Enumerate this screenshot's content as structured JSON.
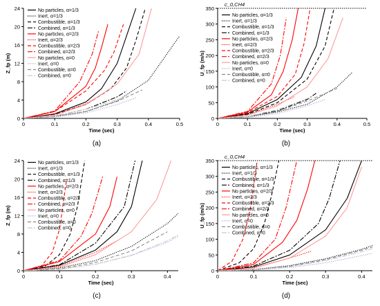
{
  "styles": {
    "np13": {
      "color": "#000000",
      "dash": ""
    },
    "in13": {
      "color": "#000000",
      "dash": "1.2,1.6"
    },
    "co13": {
      "color": "#000000",
      "dash": "5,3"
    },
    "cb13": {
      "color": "#000000",
      "dash": "7,2,2,2"
    },
    "np23": {
      "color": "#ff0000",
      "dash": ""
    },
    "in23": {
      "color": "#ff0000",
      "dash": "1.2,1.6"
    },
    "co23": {
      "color": "#ff0000",
      "dash": "5,3"
    },
    "cb23": {
      "color": "#ff0000",
      "dash": "7,2,2,2"
    },
    "np0": {
      "color": "#ff9a9a",
      "dash": ""
    },
    "in0": {
      "color": "#9fa9d6",
      "dash": "1.2,1.6"
    },
    "co0": {
      "color": "#8a8a8a",
      "dash": "5,3"
    },
    "cb0": {
      "color": "#c9c9c9",
      "dash": "7,2,2,2"
    }
  },
  "chart_data": [
    {
      "type": "line",
      "panel_label": "(a)",
      "xlabel": "Time (sec)",
      "ylabel": "Z_fp (m)",
      "xlim": [
        0,
        0.5
      ],
      "ylim": [
        0,
        24
      ],
      "xticks": [
        0,
        0.1,
        0.2,
        0.3,
        0.4,
        0.5
      ],
      "yticks": [
        0,
        4,
        8,
        12,
        16,
        20,
        24
      ],
      "grid": false,
      "legend_position": "top-left",
      "series": [
        {
          "key": "np13",
          "name": "No particles, α=1/3",
          "x": [
            0,
            0.1,
            0.2,
            0.25,
            0.3,
            0.33,
            0.36
          ],
          "y": [
            0,
            1.0,
            3.6,
            6.5,
            12.0,
            18.0,
            24.0
          ]
        },
        {
          "key": "in13",
          "name": "Inert, α=1/3",
          "x": [
            0,
            0.1,
            0.2,
            0.3,
            0.4,
            0.5
          ],
          "y": [
            0,
            0.4,
            1.5,
            3.8,
            8.3,
            18.0
          ]
        },
        {
          "key": "co13",
          "name": "Combustible, α=1/3",
          "x": [
            0,
            0.1,
            0.2,
            0.28,
            0.33,
            0.36,
            0.39
          ],
          "y": [
            0,
            0.9,
            3.0,
            6.5,
            11.0,
            17.0,
            24.0
          ]
        },
        {
          "key": "cb13",
          "name": "Combined, α=1/3",
          "x": [
            0,
            0.1,
            0.2,
            0.3,
            0.33
          ],
          "y": [
            0,
            0.5,
            2.0,
            4.7,
            6.0
          ]
        },
        {
          "key": "np23",
          "name": "No particles, α=2/3",
          "x": [
            0,
            0.1,
            0.2,
            0.23,
            0.25,
            0.27
          ],
          "y": [
            0,
            1.5,
            7.0,
            11.0,
            15.5,
            20.5
          ]
        },
        {
          "key": "in23",
          "name": "Inert, α=2/3",
          "x": [
            0,
            0.1,
            0.2,
            0.26
          ],
          "y": [
            0,
            0.9,
            3.2,
            5.6
          ]
        },
        {
          "key": "co23",
          "name": "Combustible, α=2/3",
          "x": [
            0,
            0.1,
            0.2,
            0.26,
            0.29,
            0.32
          ],
          "y": [
            0,
            1.5,
            6.0,
            10.5,
            14.5,
            20.5
          ]
        },
        {
          "key": "cb23",
          "name": "Combined, α=2/3",
          "x": [
            0,
            0.1,
            0.18,
            0.22,
            0.24
          ],
          "y": [
            0,
            1.6,
            8.0,
            14.0,
            19.0
          ]
        },
        {
          "key": "np0",
          "name": "No particles, α=0",
          "x": [
            0,
            0.1,
            0.2,
            0.3,
            0.37,
            0.41
          ],
          "y": [
            0,
            0.7,
            3.0,
            7.5,
            14.0,
            24.0
          ]
        },
        {
          "key": "in0",
          "name": "Inert, α=0",
          "x": [
            0,
            0.1,
            0.2,
            0.3,
            0.36
          ],
          "y": [
            0,
            0.3,
            1.2,
            3.0,
            4.5
          ]
        },
        {
          "key": "co0",
          "name": "Combustible, α=0",
          "x": [
            0,
            0.1,
            0.2,
            0.3,
            0.38
          ],
          "y": [
            0,
            0.4,
            1.5,
            3.7,
            6.2
          ]
        },
        {
          "key": "cb0",
          "name": "Combined, α=0",
          "x": [
            0,
            0.1,
            0.2,
            0.32
          ],
          "y": [
            0,
            0.5,
            2.0,
            4.5
          ]
        }
      ]
    },
    {
      "type": "line",
      "panel_label": "(b)",
      "xlabel": "Time (sec)",
      "ylabel": "U_fp (m/s)",
      "xlim": [
        0,
        0.5
      ],
      "ylim": [
        0,
        350
      ],
      "xticks": [
        0,
        0.1,
        0.2,
        0.3,
        0.4,
        0.5
      ],
      "yticks": [
        0,
        50,
        100,
        150,
        200,
        250,
        300,
        350
      ],
      "grid": false,
      "legend_position": "top-left",
      "reference_line": {
        "y": 350,
        "label": "c_0,CH4"
      },
      "series": [
        {
          "key": "np13",
          "name": "No particles, α=1/3",
          "x": [
            0,
            0.1,
            0.2,
            0.28,
            0.33,
            0.36
          ],
          "y": [
            0,
            15,
            60,
            130,
            230,
            350
          ]
        },
        {
          "key": "in13",
          "name": "Inert, α=1/3",
          "x": [
            0,
            0.1,
            0.2,
            0.3,
            0.4,
            0.45
          ],
          "y": [
            0,
            5,
            20,
            45,
            100,
            145
          ]
        },
        {
          "key": "co13",
          "name": "Combustible, α=1/3",
          "x": [
            0,
            0.1,
            0.2,
            0.3,
            0.36,
            0.39
          ],
          "y": [
            0,
            13,
            50,
            125,
            230,
            350
          ]
        },
        {
          "key": "cb13",
          "name": "Combined, α=1/3",
          "x": [
            0,
            0.1,
            0.2,
            0.3,
            0.33
          ],
          "y": [
            0,
            6,
            24,
            60,
            80
          ]
        },
        {
          "key": "np23",
          "name": "No particles, α=2/3",
          "x": [
            0,
            0.1,
            0.18,
            0.22,
            0.25,
            0.27
          ],
          "y": [
            0,
            20,
            75,
            150,
            250,
            350
          ]
        },
        {
          "key": "in23",
          "name": "Inert, α=2/3",
          "x": [
            0,
            0.1,
            0.2,
            0.26
          ],
          "y": [
            0,
            12,
            45,
            70
          ]
        },
        {
          "key": "co23",
          "name": "Combustible, α=2/3",
          "x": [
            0,
            0.1,
            0.2,
            0.26,
            0.29,
            0.31
          ],
          "y": [
            0,
            18,
            70,
            140,
            240,
            350
          ]
        },
        {
          "key": "cb23",
          "name": "Combined, α=2/3",
          "x": [
            0,
            0.1,
            0.18,
            0.21,
            0.23
          ],
          "y": [
            0,
            22,
            110,
            200,
            320
          ]
        },
        {
          "key": "np0",
          "name": "No particles, α=0",
          "x": [
            0,
            0.1,
            0.2,
            0.3,
            0.37,
            0.42
          ],
          "y": [
            0,
            10,
            40,
            100,
            190,
            320
          ]
        },
        {
          "key": "in0",
          "name": "Inert, α=0",
          "x": [
            0,
            0.1,
            0.2,
            0.3,
            0.36
          ],
          "y": [
            0,
            3,
            15,
            40,
            60
          ]
        },
        {
          "key": "co0",
          "name": "Combustible, α=0",
          "x": [
            0,
            0.1,
            0.2,
            0.3,
            0.4
          ],
          "y": [
            0,
            5,
            22,
            55,
            95
          ]
        },
        {
          "key": "cb0",
          "name": "Combined, α=0",
          "x": [
            0,
            0.1,
            0.2,
            0.32
          ],
          "y": [
            0,
            6,
            28,
            70
          ]
        }
      ]
    },
    {
      "type": "line",
      "panel_label": "(c)",
      "xlabel": "Time (sec)",
      "ylabel": "Z_fp (m)",
      "xlim": [
        0,
        0.43
      ],
      "ylim": [
        0,
        24
      ],
      "xticks": [
        0,
        0.1,
        0.2,
        0.3,
        0.4
      ],
      "yticks": [
        0,
        4,
        8,
        12,
        16,
        20,
        24
      ],
      "grid": false,
      "legend_position": "top-left",
      "series": [
        {
          "key": "np13",
          "name": "No particles, α=1/3",
          "x": [
            0,
            0.1,
            0.2,
            0.26,
            0.3,
            0.33
          ],
          "y": [
            0,
            1.2,
            4.5,
            8.5,
            14.0,
            24.0
          ]
        },
        {
          "key": "in13",
          "name": "Inert, α=1/3",
          "x": [
            0,
            0.1,
            0.2,
            0.3,
            0.4,
            0.43
          ],
          "y": [
            0,
            0.6,
            2.2,
            5.3,
            10.3,
            12.5
          ]
        },
        {
          "key": "co13",
          "name": "Combustible, α=1/3",
          "x": [
            0,
            0.06,
            0.1,
            0.13,
            0.15,
            0.17
          ],
          "y": [
            0,
            1.0,
            3.5,
            8.0,
            14.0,
            24.0
          ]
        },
        {
          "key": "cb13",
          "name": "Combined, α=1/3",
          "x": [
            0,
            0.1,
            0.2,
            0.28,
            0.31
          ],
          "y": [
            0,
            1.3,
            6.0,
            14.0,
            24.0
          ]
        },
        {
          "key": "np23",
          "name": "No particles, α=2/3",
          "x": [
            0,
            0.1,
            0.2,
            0.24,
            0.26
          ],
          "y": [
            0,
            2.0,
            8.0,
            14.0,
            20.5
          ]
        },
        {
          "key": "in23",
          "name": "Inert, α=2/3",
          "x": [
            0,
            0.1,
            0.2,
            0.26
          ],
          "y": [
            0,
            1.0,
            4.0,
            6.5
          ]
        },
        {
          "key": "co23",
          "name": "Combustible, α=2/3",
          "x": [
            0,
            0.05,
            0.08,
            0.1,
            0.12
          ],
          "y": [
            0,
            1.0,
            4.0,
            9.0,
            20.0
          ]
        },
        {
          "key": "cb23",
          "name": "Combined, α=2/3",
          "x": [
            0,
            0.1,
            0.16,
            0.19,
            0.22
          ],
          "y": [
            0,
            2.2,
            7.5,
            12.5,
            20.5
          ]
        },
        {
          "key": "np0",
          "name": "No particles, α=0",
          "x": [
            0,
            0.1,
            0.2,
            0.3,
            0.37,
            0.41
          ],
          "y": [
            0,
            0.8,
            3.5,
            8.5,
            15.5,
            24.0
          ]
        },
        {
          "key": "in0",
          "name": "Inert, α=0",
          "x": [
            0,
            0.1,
            0.2,
            0.3,
            0.4,
            0.43
          ],
          "y": [
            0,
            0.3,
            1.4,
            3.3,
            6.2,
            7.5
          ]
        },
        {
          "key": "co0",
          "name": "Combustible, α=0",
          "x": [
            0,
            0.1,
            0.2,
            0.3,
            0.4
          ],
          "y": [
            0,
            0.4,
            1.8,
            4.3,
            8.5
          ]
        },
        {
          "key": "cb0",
          "name": "Combined, α=0",
          "x": [
            0,
            0.1,
            0.2,
            0.3,
            0.4,
            0.43
          ],
          "y": [
            0,
            0.3,
            1.4,
            3.4,
            6.5,
            7.8
          ]
        }
      ]
    },
    {
      "type": "line",
      "panel_label": "(d)",
      "xlabel": "Time (sec)",
      "ylabel": "U_fp (m/s)",
      "xlim": [
        0,
        0.43
      ],
      "ylim": [
        0,
        350
      ],
      "xticks": [
        0,
        0.1,
        0.2,
        0.3,
        0.4
      ],
      "yticks": [
        0,
        50,
        100,
        150,
        200,
        250,
        300,
        350
      ],
      "grid": false,
      "legend_position": "top-left",
      "reference_line": {
        "y": 350,
        "label": "c_0,CH4"
      },
      "series": [
        {
          "key": "np13",
          "name": "No particles, α=1/3",
          "x": [
            0,
            0.1,
            0.2,
            0.3,
            0.36,
            0.4
          ],
          "y": [
            0,
            12,
            50,
            130,
            230,
            350
          ]
        },
        {
          "key": "in13",
          "name": "Inert, α=1/3",
          "x": [
            0,
            0.1,
            0.2,
            0.3,
            0.4,
            0.43
          ],
          "y": [
            0,
            4,
            16,
            38,
            68,
            80
          ]
        },
        {
          "key": "co13",
          "name": "Combustible, α=1/3",
          "x": [
            0,
            0.06,
            0.1,
            0.13,
            0.15,
            0.17
          ],
          "y": [
            0,
            25,
            70,
            150,
            240,
            350
          ]
        },
        {
          "key": "cb13",
          "name": "Combined, α=1/3",
          "x": [
            0,
            0.1,
            0.2,
            0.28,
            0.31,
            0.34
          ],
          "y": [
            0,
            15,
            65,
            150,
            230,
            350
          ]
        },
        {
          "key": "np23",
          "name": "No particles, α=2/3",
          "x": [
            0,
            0.1,
            0.18,
            0.22,
            0.25,
            0.27
          ],
          "y": [
            0,
            20,
            90,
            160,
            260,
            350
          ]
        },
        {
          "key": "in23",
          "name": "Inert, α=2/3",
          "x": [
            0,
            0.1,
            0.2,
            0.26
          ],
          "y": [
            0,
            10,
            40,
            62
          ]
        },
        {
          "key": "co23",
          "name": "Combustible, α=2/3",
          "x": [
            0,
            0.04,
            0.07,
            0.09,
            0.11
          ],
          "y": [
            0,
            30,
            100,
            190,
            350
          ]
        },
        {
          "key": "cb23",
          "name": "Combined, α=2/3",
          "x": [
            0,
            0.1,
            0.16,
            0.19,
            0.22
          ],
          "y": [
            0,
            25,
            100,
            200,
            350
          ]
        },
        {
          "key": "np0",
          "name": "No particles, α=0",
          "x": [
            0,
            0.1,
            0.2,
            0.3,
            0.36,
            0.4
          ],
          "y": [
            0,
            8,
            40,
            110,
            200,
            330
          ]
        },
        {
          "key": "in0",
          "name": "Inert, α=0",
          "x": [
            0,
            0.1,
            0.2,
            0.3,
            0.4,
            0.43
          ],
          "y": [
            0,
            2,
            10,
            25,
            48,
            55
          ]
        },
        {
          "key": "co0",
          "name": "Combustible, α=0",
          "x": [
            0,
            0.1,
            0.2,
            0.3,
            0.4,
            0.43
          ],
          "y": [
            0,
            3,
            14,
            35,
            65,
            75
          ]
        },
        {
          "key": "cb0",
          "name": "Combined, α=0",
          "x": [
            0,
            0.1,
            0.2,
            0.3,
            0.4,
            0.43
          ],
          "y": [
            0,
            3,
            12,
            32,
            60,
            70
          ]
        }
      ]
    }
  ]
}
